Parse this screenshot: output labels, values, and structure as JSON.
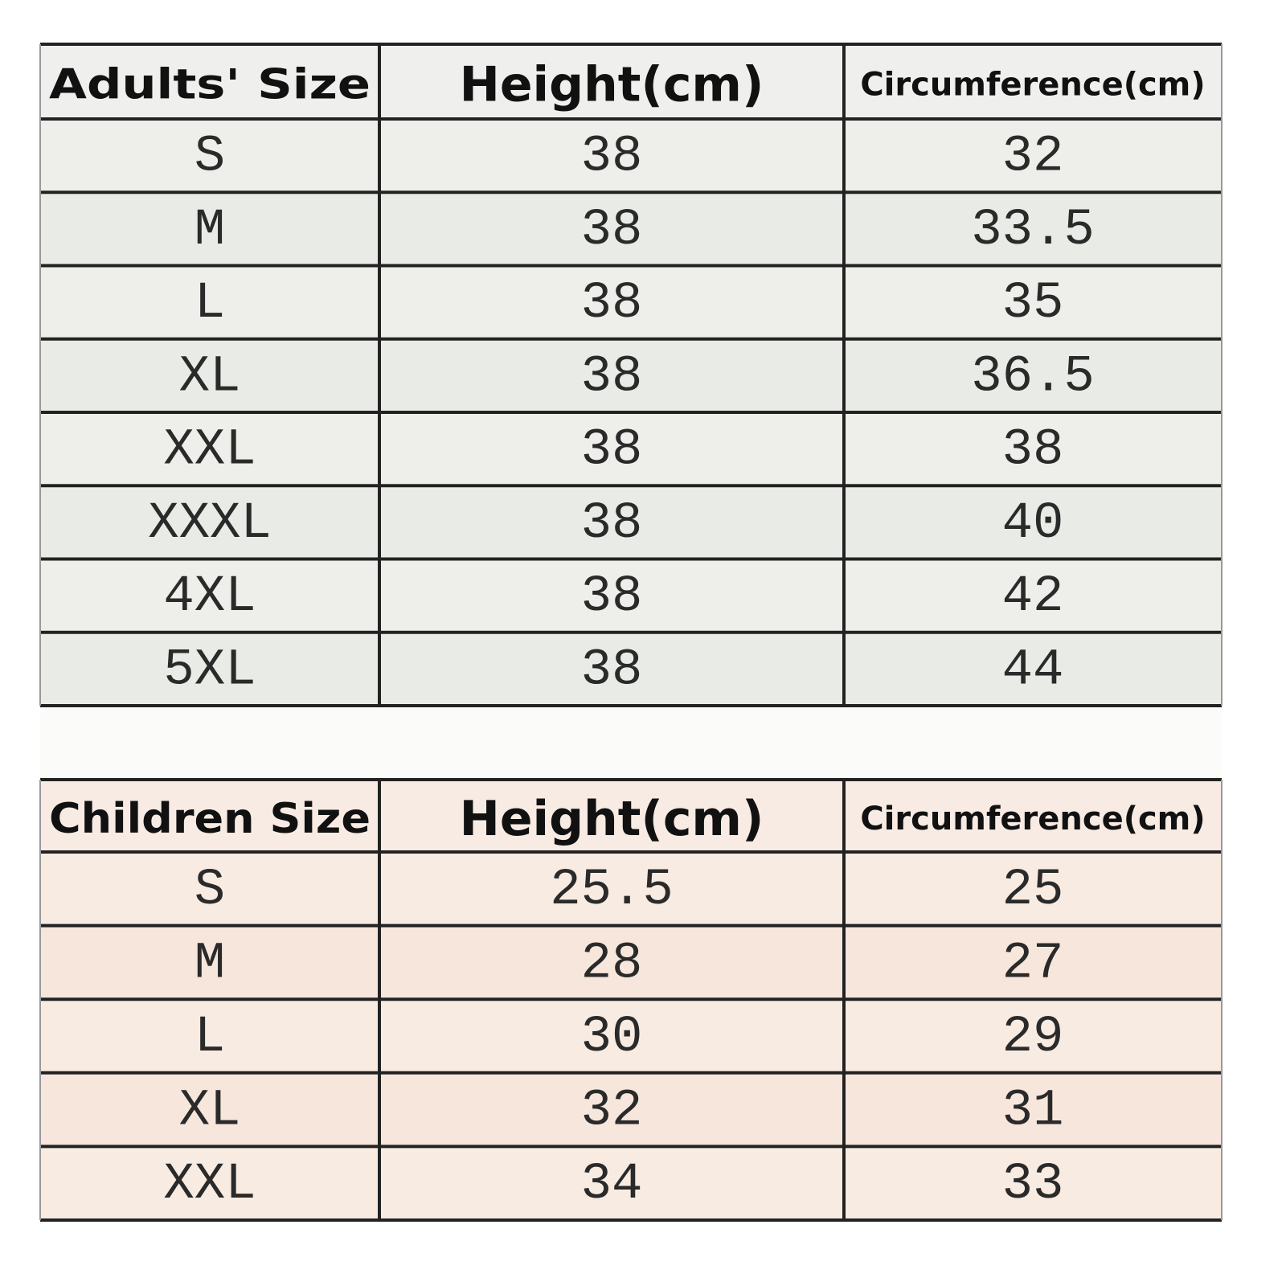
{
  "adults": {
    "header": [
      "Adults' Size",
      "Height(cm)",
      "Circumference(cm)"
    ],
    "rows": [
      [
        "S",
        "38",
        "32"
      ],
      [
        "M",
        "38",
        "33.5"
      ],
      [
        "L",
        "38",
        "35"
      ],
      [
        "XL",
        "38",
        "36.5"
      ],
      [
        "XXL",
        "38",
        "38"
      ],
      [
        "XXXL",
        "38",
        "40"
      ],
      [
        "4XL",
        "38",
        "42"
      ],
      [
        "5XL",
        "38",
        "44"
      ]
    ]
  },
  "children": {
    "header": [
      "Children Size",
      "Height(cm)",
      "Circumference(cm)"
    ],
    "rows": [
      [
        "S",
        "25.5",
        "25"
      ],
      [
        "M",
        "28",
        "27"
      ],
      [
        "L",
        "30",
        "29"
      ],
      [
        "XL",
        "32",
        "31"
      ],
      [
        "XXL",
        "34",
        "33"
      ]
    ]
  }
}
